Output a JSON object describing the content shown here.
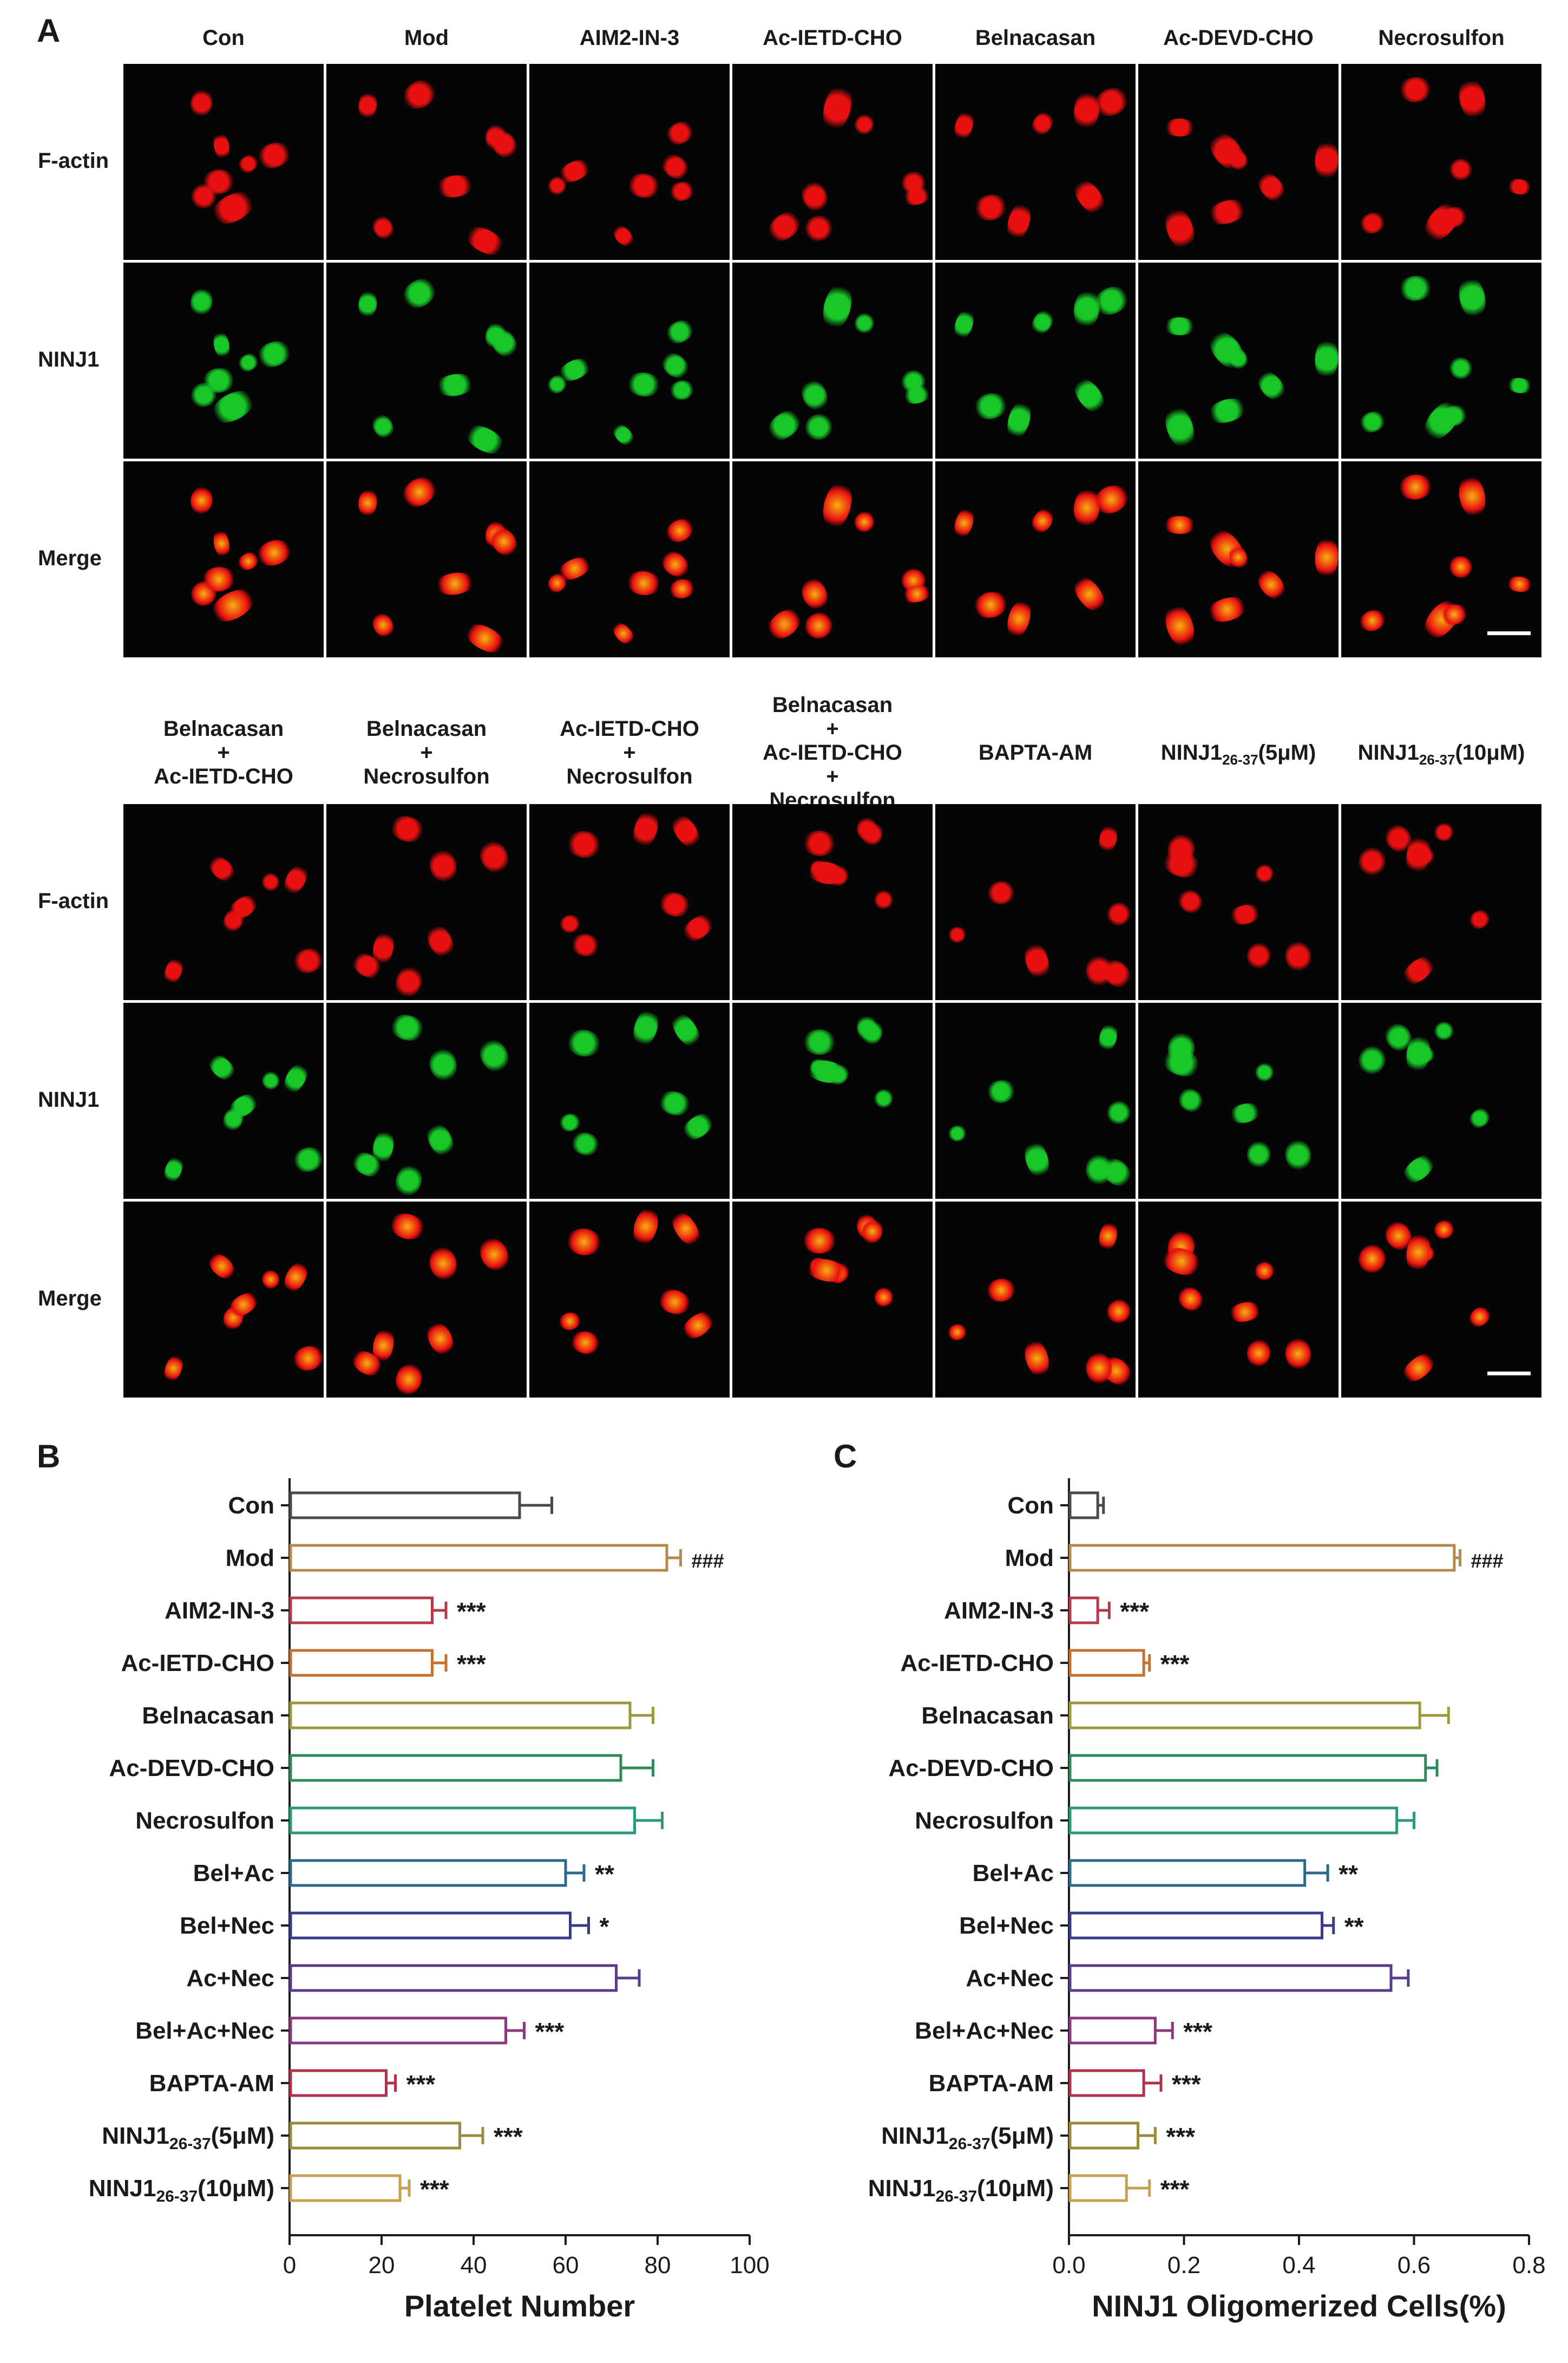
{
  "panels": {
    "a": "A",
    "b": "B",
    "c": "C"
  },
  "micrograph_top": {
    "columns": [
      "Con",
      "Mod",
      "AIM2-IN-3",
      "Ac-IETD-CHO",
      "Belnacasan",
      "Ac-DEVD-CHO",
      "Necrosulfon"
    ],
    "rows": [
      "F-actin",
      "NINJ1",
      "Merge"
    ]
  },
  "micrograph_bottom": {
    "columns": [
      {
        "lines": [
          "Belnacasan",
          "+",
          "Ac-IETD-CHO"
        ]
      },
      {
        "lines": [
          "Belnacasan",
          "+",
          "Necrosulfon"
        ]
      },
      {
        "lines": [
          "Ac-IETD-CHO",
          "+",
          "Necrosulfon"
        ]
      },
      {
        "lines": [
          "Belnacasan",
          "+",
          "Ac-IETD-CHO",
          "+",
          "Necrosulfon"
        ]
      },
      {
        "lines": [
          "BAPTA-AM"
        ]
      },
      {
        "lines": [
          "NINJ1",
          "26-37",
          "(5μM)"
        ]
      },
      {
        "lines": [
          "NINJ1",
          "26-37",
          "(10μM)"
        ]
      }
    ],
    "rows": [
      "F-actin",
      "NINJ1",
      "Merge"
    ]
  },
  "chart_data": [
    {
      "type": "bar",
      "orientation": "horizontal",
      "panel": "B",
      "xlabel": "Platelet Number",
      "xlim": [
        0,
        100
      ],
      "xticks": [
        "0",
        "20",
        "40",
        "60",
        "80",
        "100"
      ],
      "categories": [
        "Con",
        "Mod",
        "AIM2-IN-3",
        "Ac-IETD-CHO",
        "Belnacasan",
        "Ac-DEVD-CHO",
        "Necrosulfon",
        "Bel+Ac",
        "Bel+Nec",
        "Ac+Nec",
        "Bel+Ac+Nec",
        "BAPTA-AM",
        "NINJ1(5μM)",
        "NINJ1(10μM)"
      ],
      "category_labels": [
        {
          "main": "Con"
        },
        {
          "main": "Mod"
        },
        {
          "main": "AIM2-IN-3"
        },
        {
          "main": "Ac-IETD-CHO"
        },
        {
          "main": "Belnacasan"
        },
        {
          "main": "Ac-DEVD-CHO"
        },
        {
          "main": "Necrosulfon"
        },
        {
          "main": "Bel+Ac"
        },
        {
          "main": "Bel+Nec"
        },
        {
          "main": "Ac+Nec"
        },
        {
          "main": "Bel+Ac+Nec"
        },
        {
          "main": "BAPTA-AM"
        },
        {
          "main": "NINJ1",
          "sub": "26-37",
          "tail": "(5μM)"
        },
        {
          "main": "NINJ1",
          "sub": "26-37",
          "tail": "(10μM)"
        }
      ],
      "values": [
        50,
        82,
        31,
        31,
        74,
        72,
        75,
        60,
        61,
        71,
        47,
        21,
        37,
        24
      ],
      "errors": [
        7,
        3,
        3,
        3,
        5,
        7,
        6,
        4,
        4,
        5,
        4,
        2,
        5,
        2
      ],
      "annotations": [
        "",
        "###",
        "***",
        "***",
        "",
        "",
        "",
        "**",
        "*",
        "",
        "***",
        "***",
        "***",
        "***"
      ],
      "colors": [
        "#4a4a4a",
        "#b48a4a",
        "#b43a4a",
        "#c8702a",
        "#9a9a3a",
        "#2f8a5a",
        "#2a9a7a",
        "#2a6a8a",
        "#3a3a8a",
        "#5a3a8a",
        "#8a3a7a",
        "#b4304a",
        "#9a8a3a",
        "#c8a050"
      ]
    },
    {
      "type": "bar",
      "orientation": "horizontal",
      "panel": "C",
      "xlabel": "NINJ1 Oligomerized Cells(%)",
      "xlim": [
        0,
        0.8
      ],
      "xticks": [
        "0.0",
        "0.2",
        "0.4",
        "0.6",
        "0.8"
      ],
      "categories": [
        "Con",
        "Mod",
        "AIM2-IN-3",
        "Ac-IETD-CHO",
        "Belnacasan",
        "Ac-DEVD-CHO",
        "Necrosulfon",
        "Bel+Ac",
        "Bel+Nec",
        "Ac+Nec",
        "Bel+Ac+Nec",
        "BAPTA-AM",
        "NINJ1(5μM)",
        "NINJ1(10μM)"
      ],
      "category_labels": [
        {
          "main": "Con"
        },
        {
          "main": "Mod"
        },
        {
          "main": "AIM2-IN-3"
        },
        {
          "main": "Ac-IETD-CHO"
        },
        {
          "main": "Belnacasan"
        },
        {
          "main": "Ac-DEVD-CHO"
        },
        {
          "main": "Necrosulfon"
        },
        {
          "main": "Bel+Ac"
        },
        {
          "main": "Bel+Nec"
        },
        {
          "main": "Ac+Nec"
        },
        {
          "main": "Bel+Ac+Nec"
        },
        {
          "main": "BAPTA-AM"
        },
        {
          "main": "NINJ1",
          "sub": "26-37",
          "tail": "(5μM)"
        },
        {
          "main": "NINJ1",
          "sub": "26-37",
          "tail": "(10μM)"
        }
      ],
      "values": [
        0.05,
        0.67,
        0.05,
        0.13,
        0.61,
        0.62,
        0.57,
        0.41,
        0.44,
        0.56,
        0.15,
        0.13,
        0.12,
        0.1
      ],
      "errors": [
        0.01,
        0.01,
        0.02,
        0.01,
        0.05,
        0.02,
        0.03,
        0.04,
        0.02,
        0.03,
        0.03,
        0.03,
        0.03,
        0.04
      ],
      "annotations": [
        "",
        "###",
        "***",
        "***",
        "",
        "",
        "",
        "**",
        "**",
        "",
        "***",
        "***",
        "***",
        "***"
      ],
      "colors": [
        "#4a4a4a",
        "#b48a4a",
        "#b43a4a",
        "#c8702a",
        "#9a9a3a",
        "#2f8a5a",
        "#2a9a7a",
        "#2a6a8a",
        "#3a3a8a",
        "#5a3a8a",
        "#8a3a7a",
        "#b4304a",
        "#9a8a3a",
        "#c8a050"
      ]
    }
  ],
  "colors": {
    "actin": "#e81010",
    "ninj1": "#18c828",
    "merge": "#f8b010",
    "tile_bg": "#050505",
    "axis": "#1a1a1a"
  }
}
